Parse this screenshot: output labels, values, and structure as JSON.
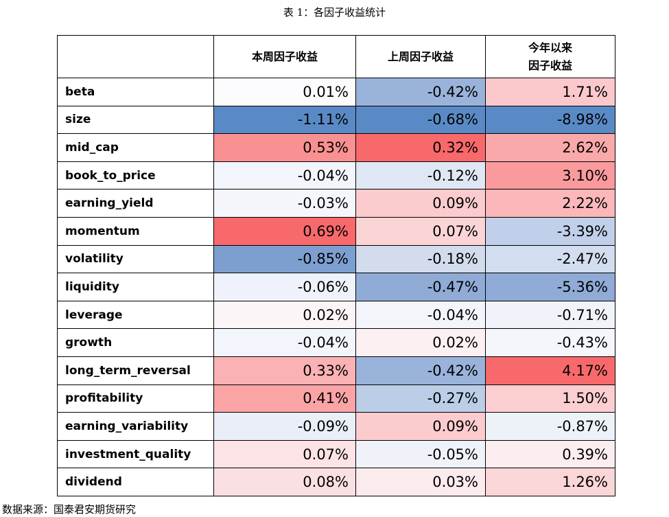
{
  "title": "表 1：各因子收益统计",
  "source": "数据来源：国泰君安期货研究",
  "columns": [
    "",
    "本周因子收益",
    "上周因子收益",
    "今年以来\n因子收益"
  ],
  "rows": [
    {
      "name": "beta",
      "values": [
        "0.01%",
        "-0.42%",
        "1.71%"
      ],
      "colors": [
        "#fcfcff",
        "#9ab3da",
        "#fbc9cc"
      ]
    },
    {
      "name": "size",
      "values": [
        "-1.11%",
        "-0.68%",
        "-8.98%"
      ],
      "colors": [
        "#5a8ac6",
        "#5a8ac6",
        "#5a8ac6"
      ]
    },
    {
      "name": "mid_cap",
      "values": [
        "0.53%",
        "0.32%",
        "2.62%"
      ],
      "colors": [
        "#f99092",
        "#f8696b",
        "#faa9ab"
      ]
    },
    {
      "name": "book_to_price",
      "values": [
        "-0.04%",
        "-0.12%",
        "3.10%"
      ],
      "colors": [
        "#f2f5fb",
        "#e0e7f4",
        "#fa9a9c"
      ]
    },
    {
      "name": "earning_yield",
      "values": [
        "-0.03%",
        "0.09%",
        "2.22%"
      ],
      "colors": [
        "#f4f6fb",
        "#fbcbcd",
        "#fbb7b9"
      ]
    },
    {
      "name": "momentum",
      "values": [
        "0.69%",
        "0.07%",
        "-3.39%"
      ],
      "colors": [
        "#f8696b",
        "#fbd4d6",
        "#c0d0ea"
      ]
    },
    {
      "name": "volatility",
      "values": [
        "-0.85%",
        "-0.18%",
        "-2.47%"
      ],
      "colors": [
        "#7d9fd0",
        "#d2dced",
        "#d2ddef"
      ]
    },
    {
      "name": "liquidity",
      "values": [
        "-0.06%",
        "-0.47%",
        "-5.36%"
      ],
      "colors": [
        "#eff2fa",
        "#8fabd6",
        "#8fabd6"
      ]
    },
    {
      "name": "leverage",
      "values": [
        "0.02%",
        "-0.04%",
        "-0.71%"
      ],
      "colors": [
        "#fcf5f8",
        "#f3f5fb",
        "#f0f3f9"
      ]
    },
    {
      "name": "growth",
      "values": [
        "-0.04%",
        "0.02%",
        "-0.43%"
      ],
      "colors": [
        "#f2f5fb",
        "#fcf0f2",
        "#f4f6fb"
      ]
    },
    {
      "name": "long_term_reversal",
      "values": [
        "0.33%",
        "-0.42%",
        "4.17%"
      ],
      "colors": [
        "#fab2b4",
        "#9ab3da",
        "#f8696b"
      ]
    },
    {
      "name": "profitability",
      "values": [
        "0.41%",
        "-0.27%",
        "1.50%"
      ],
      "colors": [
        "#faa4a6",
        "#bccde8",
        "#fbcfd1"
      ]
    },
    {
      "name": "earning_variability",
      "values": [
        "-0.09%",
        "0.09%",
        "-0.87%"
      ],
      "colors": [
        "#e9eef7",
        "#fbcbcd",
        "#edf1f8"
      ]
    },
    {
      "name": "investment_quality",
      "values": [
        "0.07%",
        "-0.05%",
        "0.39%"
      ],
      "colors": [
        "#fbe3e6",
        "#eff3f9",
        "#fcedf0"
      ]
    },
    {
      "name": "dividend",
      "values": [
        "0.08%",
        "0.03%",
        "1.26%"
      ],
      "colors": [
        "#fbe0e3",
        "#fbebed",
        "#fbd6d8"
      ]
    }
  ]
}
